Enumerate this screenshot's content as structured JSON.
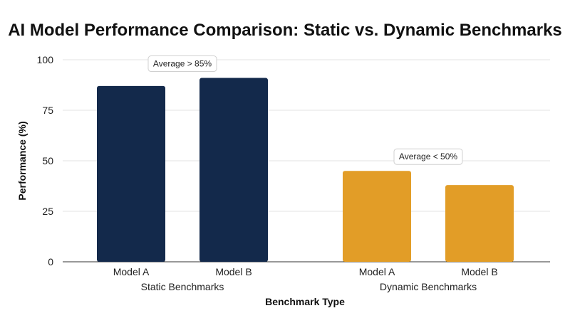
{
  "chart_data": {
    "type": "bar",
    "title": "AI Model Performance Comparison: Static vs. Dynamic Benchmarks",
    "xlabel": "Benchmark Type",
    "ylabel": "Performance (%)",
    "ylim": [
      0,
      100
    ],
    "yticks": [
      0,
      25,
      50,
      75,
      100
    ],
    "grid": true,
    "groups": [
      {
        "name": "Static Benchmarks",
        "color": "#13294b",
        "annotation": "Average > 85%",
        "bars": [
          {
            "label": "Model A",
            "value": 87
          },
          {
            "label": "Model B",
            "value": 91
          }
        ]
      },
      {
        "name": "Dynamic Benchmarks",
        "color": "#e29d27",
        "annotation": "Average < 50%",
        "bars": [
          {
            "label": "Model A",
            "value": 45
          },
          {
            "label": "Model B",
            "value": 38
          }
        ]
      }
    ]
  }
}
